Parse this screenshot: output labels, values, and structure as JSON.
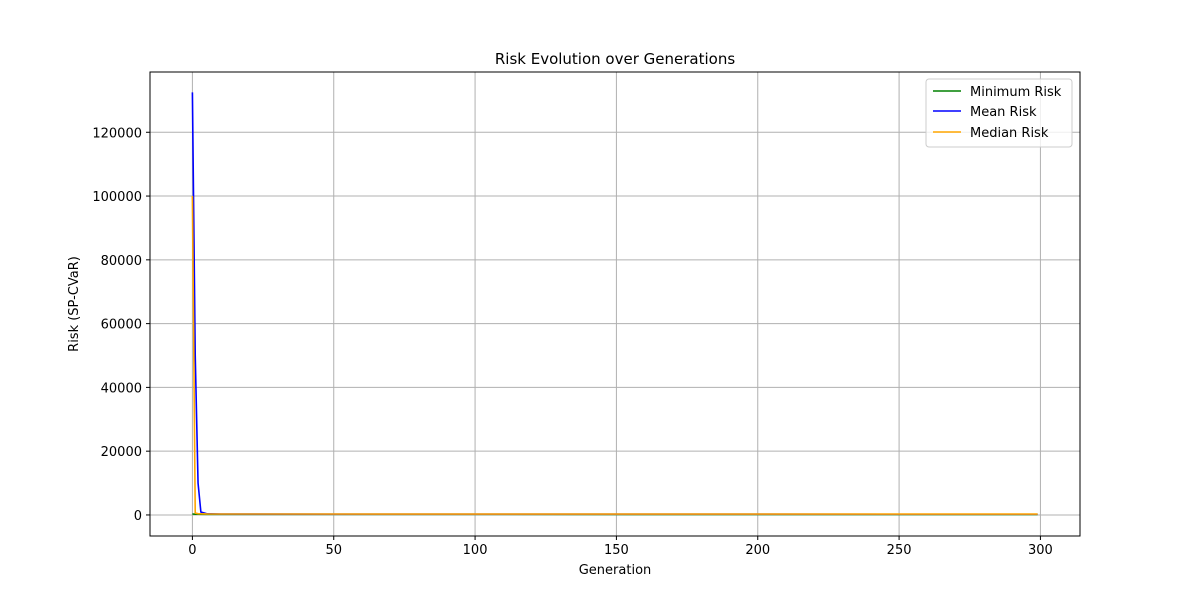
{
  "chart_data": {
    "type": "line",
    "title": "Risk Evolution over Generations",
    "xlabel": "Generation",
    "ylabel": "Risk (SP-CVaR)",
    "xlim": [
      -15,
      314
    ],
    "ylim": [
      -6600,
      138900
    ],
    "x_ticks": [
      0,
      50,
      100,
      150,
      200,
      250,
      300
    ],
    "y_ticks": [
      0,
      20000,
      40000,
      60000,
      80000,
      100000,
      120000
    ],
    "grid": true,
    "legend_position": "top-right",
    "series": [
      {
        "name": "Minimum Risk",
        "color": "#008000",
        "points": [
          [
            0,
            300
          ],
          [
            1,
            250
          ],
          [
            2,
            220
          ],
          [
            5,
            200
          ],
          [
            20,
            190
          ],
          [
            100,
            180
          ],
          [
            299,
            170
          ]
        ]
      },
      {
        "name": "Mean Risk",
        "color": "#0000ff",
        "points": [
          [
            0,
            132500
          ],
          [
            1,
            50000
          ],
          [
            2,
            10000
          ],
          [
            3,
            900
          ],
          [
            5,
            400
          ],
          [
            10,
            300
          ],
          [
            50,
            250
          ],
          [
            150,
            230
          ],
          [
            299,
            220
          ]
        ]
      },
      {
        "name": "Median Risk",
        "color": "#ffa500",
        "points": [
          [
            0,
            100000
          ],
          [
            1,
            600
          ],
          [
            2,
            400
          ],
          [
            5,
            320
          ],
          [
            20,
            300
          ],
          [
            100,
            280
          ],
          [
            299,
            270
          ]
        ]
      }
    ]
  }
}
